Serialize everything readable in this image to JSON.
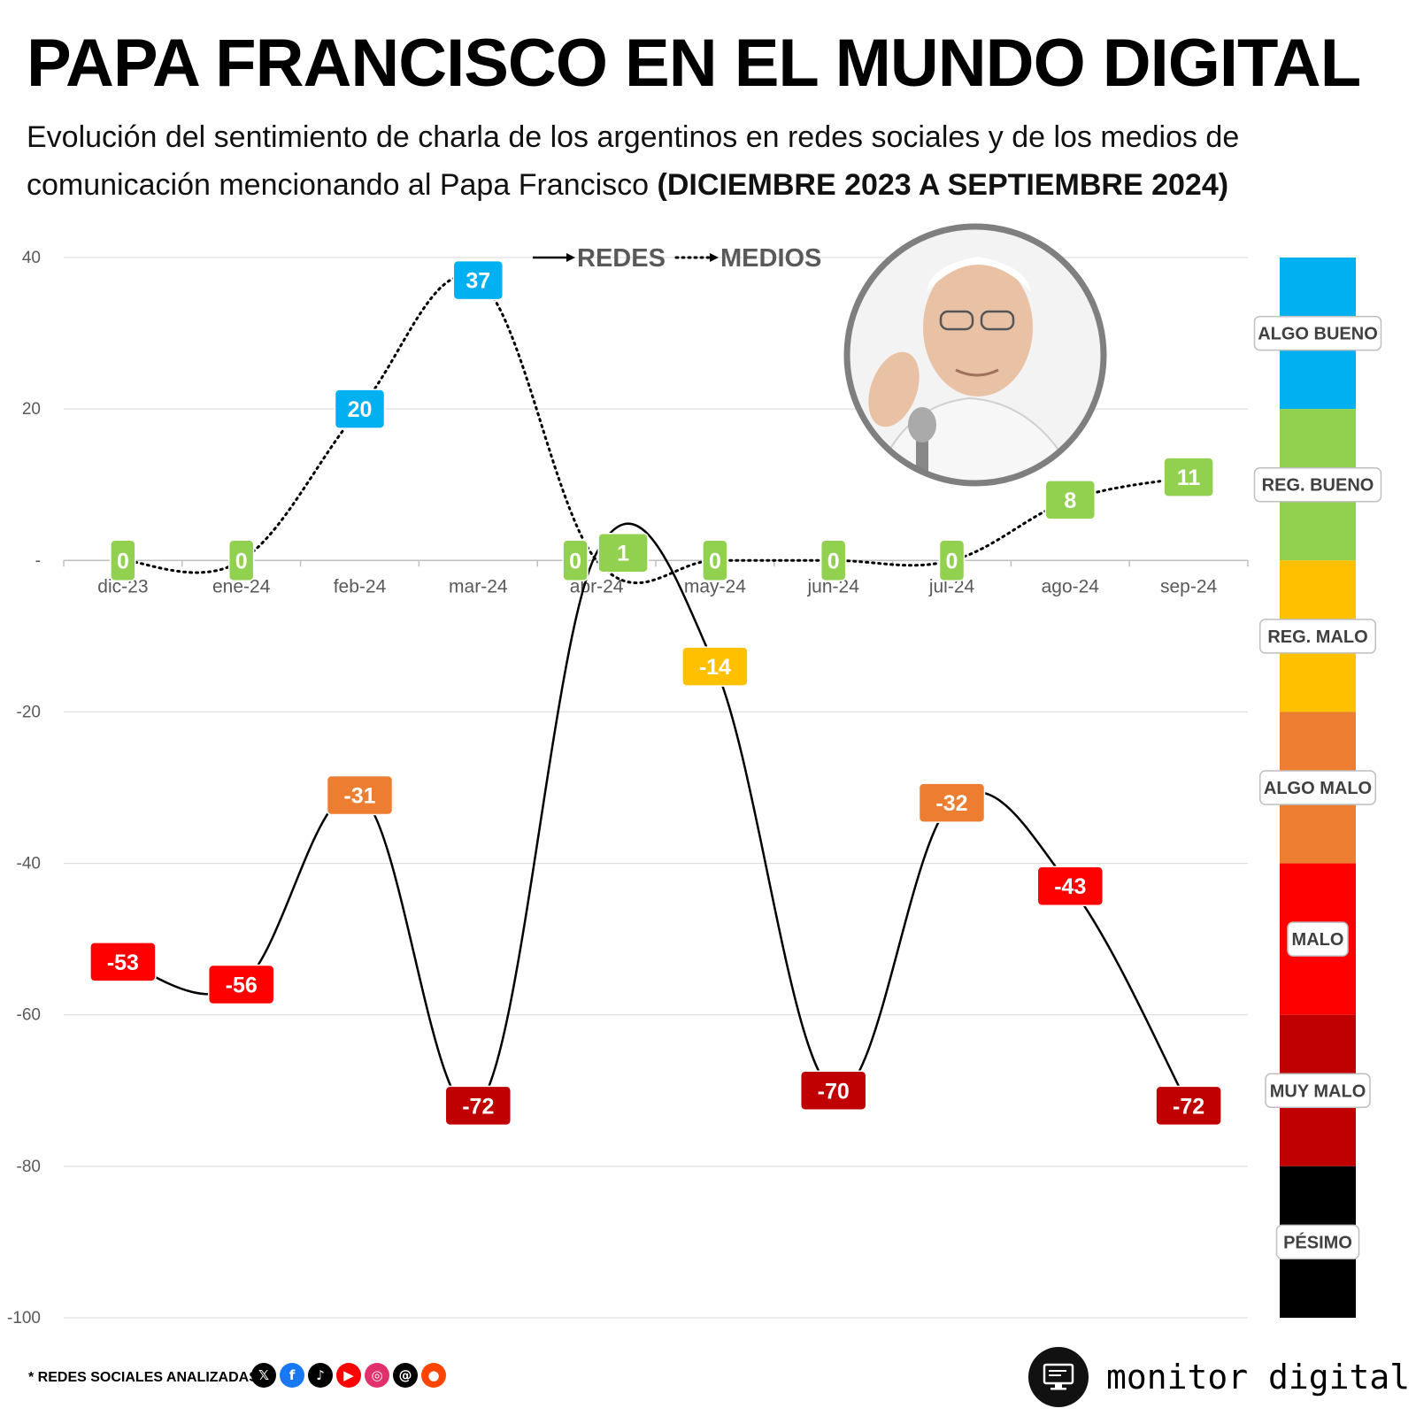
{
  "header": {
    "title": "PAPA FRANCISCO EN EL MUNDO DIGITAL",
    "subtitle_plain": "Evolución del sentimiento de charla de los argentinos en redes sociales y de los medios de comunicación mencionando al Papa Francisco ",
    "subtitle_bold": "(DICIEMBRE 2023 A SEPTIEMBRE 2024)"
  },
  "chart_data": {
    "type": "line",
    "categories": [
      "dic-23",
      "ene-24",
      "feb-24",
      "mar-24",
      "abr-24",
      "may-24",
      "jun-24",
      "jul-24",
      "ago-24",
      "sep-24"
    ],
    "series": [
      {
        "name": "REDES",
        "style": "solid",
        "values": [
          -53,
          -56,
          -31,
          -72,
          1,
          -14,
          -70,
          -32,
          -43,
          -72
        ]
      },
      {
        "name": "MEDIOS",
        "style": "dotted",
        "values": [
          0,
          0,
          20,
          37,
          0,
          0,
          0,
          0,
          8,
          11
        ]
      }
    ],
    "ylim": [
      -100,
      40
    ],
    "yticks": [
      {
        "value": 40,
        "label": "40"
      },
      {
        "value": 20,
        "label": "20"
      },
      {
        "value": 0,
        "label": "-"
      },
      {
        "value": -20,
        "label": "-20"
      },
      {
        "value": -40,
        "label": "-40"
      },
      {
        "value": -60,
        "label": "-60"
      },
      {
        "value": -80,
        "label": "-80"
      },
      {
        "value": -100,
        "label": "-100"
      }
    ],
    "grid": true,
    "legend_position": "top-center",
    "sentiment_scale": [
      {
        "label": "ALGO BUENO",
        "from": 20,
        "to": 40,
        "color": "#00B0F0"
      },
      {
        "label": "REG. BUENO",
        "from": 0,
        "to": 20,
        "color": "#92D050"
      },
      {
        "label": "REG. MALO",
        "from": -20,
        "to": 0,
        "color": "#FFC000"
      },
      {
        "label": "ALGO MALO",
        "from": -40,
        "to": -20,
        "color": "#ED7D31"
      },
      {
        "label": "MALO",
        "from": -60,
        "to": -40,
        "color": "#FF0000"
      },
      {
        "label": "MUY MALO",
        "from": -80,
        "to": -60,
        "color": "#C00000"
      },
      {
        "label": "PÉSIMO",
        "from": -100,
        "to": -80,
        "color": "#000000"
      }
    ]
  },
  "footer": {
    "note": "* REDES SOCIALES ANALIZADAS",
    "social_icons": [
      {
        "icon": "x-icon",
        "glyph": "𝕏",
        "color": "#000000"
      },
      {
        "icon": "facebook-icon",
        "glyph": "f",
        "color": "#1877F2"
      },
      {
        "icon": "tiktok-icon",
        "glyph": "♪",
        "color": "#000000"
      },
      {
        "icon": "youtube-icon",
        "glyph": "▶",
        "color": "#FF0000"
      },
      {
        "icon": "instagram-icon",
        "glyph": "◎",
        "color": "#E1306C"
      },
      {
        "icon": "threads-icon",
        "glyph": "@",
        "color": "#000000"
      },
      {
        "icon": "reddit-icon",
        "glyph": "●",
        "color": "#FF4500"
      }
    ],
    "brand": "monitor digital"
  }
}
